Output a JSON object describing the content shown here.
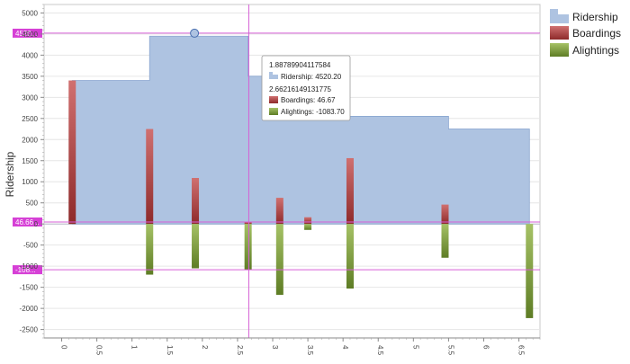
{
  "chart_data": {
    "type": "bar",
    "ylabel": "Ridership",
    "xlabel": "",
    "title": "",
    "xlim": [
      -0.25,
      6.8
    ],
    "ylim": [
      -2700,
      5200
    ],
    "x_ticks": [
      "0",
      "0.5",
      "1",
      "1.5",
      "2",
      "2.5",
      "3",
      "3.5",
      "4",
      "4.5",
      "5",
      "5.5",
      "6",
      "6.5"
    ],
    "x_tick_values": [
      0,
      0.5,
      1,
      1.5,
      2,
      2.5,
      3,
      3.5,
      4,
      4.5,
      5,
      5.5,
      6,
      6.5
    ],
    "y_ticks": [
      "5000",
      "4500",
      "4000",
      "3500",
      "3000",
      "2500",
      "2000",
      "1500",
      "1000",
      "500",
      "0",
      "-500",
      "-1000",
      "-1500",
      "-2000",
      "-2500"
    ],
    "y_tick_values": [
      5000,
      4500,
      4000,
      3500,
      3000,
      2500,
      2000,
      1500,
      1000,
      500,
      0,
      -500,
      -1000,
      -1500,
      -2000,
      -2500
    ],
    "grid": true,
    "legend_position": "top-right",
    "colors": {
      "ridership": "#aec3e1",
      "ridership_edge": "#8aa6d0",
      "boardings": "#b53a3a",
      "boardings_light": "#cf6b6b",
      "alightings": "#7c9c3a",
      "alightings_light": "#a9c46a",
      "crosshair": "#d65fd6"
    },
    "ridership_steps": [
      {
        "x": 0.15,
        "y": 3400
      },
      {
        "x": 1.25,
        "y": 4450
      },
      {
        "x": 2.65,
        "y": 3500
      },
      {
        "x": 3.1,
        "y": 2500
      },
      {
        "x": 4.1,
        "y": 2550
      },
      {
        "x": 5.5,
        "y": 2250
      },
      {
        "x": 6.65,
        "y": 2250
      }
    ],
    "series": [
      {
        "name": "Ridership",
        "key": "ridership",
        "type": "area-step"
      },
      {
        "name": "Boardings",
        "key": "boardings",
        "type": "bar",
        "x": [
          0.15,
          1.25,
          1.9,
          2.65,
          3.1,
          3.5,
          4.1,
          5.45
        ],
        "values": [
          3400,
          2250,
          1090,
          47,
          620,
          160,
          1560,
          460
        ]
      },
      {
        "name": "Alightings",
        "key": "alightings",
        "type": "bar",
        "x": [
          1.25,
          1.9,
          2.65,
          3.1,
          3.5,
          4.1,
          5.45,
          6.65
        ],
        "values": [
          -1200,
          -1050,
          -1084,
          -1680,
          -140,
          -1530,
          -800,
          -2230
        ]
      }
    ],
    "tooltip": {
      "x_ridership": "1.88789904117584",
      "ridership_label": "Ridership: 4520.20",
      "x_bars": "2.66216149131775",
      "boardings_label": "Boardings: 46.67",
      "alightings_label": "Alightings: -1083.70"
    },
    "crosshair": {
      "vertical_x": 2.66,
      "h_ridership": 4520.2,
      "h_boardings": 46.67,
      "h_alightings": -1083.7,
      "label_ridership": "4520...",
      "label_boardings": "46.66...",
      "label_alightings": "-108...",
      "marker_x": 1.888,
      "marker_y": 4520.2
    }
  }
}
